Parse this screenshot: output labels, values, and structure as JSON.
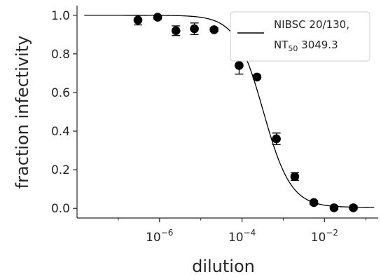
{
  "chart_data": {
    "type": "scatter",
    "xlabel": "dilution",
    "ylabel": "fraction infectivity",
    "xscale": "log",
    "xlim": [
      1e-08,
      0.2
    ],
    "ylim": [
      -0.05,
      1.05
    ],
    "grid": false,
    "legend_position": "top-right",
    "x_ticks": [
      {
        "value": 1e-06,
        "base": "10",
        "exp": "−6"
      },
      {
        "value": 0.0001,
        "base": "10",
        "exp": "−4"
      },
      {
        "value": 0.01,
        "base": "10",
        "exp": "−2"
      }
    ],
    "y_ticks": [
      "0.0",
      "0.2",
      "0.4",
      "0.6",
      "0.8",
      "1.0"
    ],
    "legend": {
      "line1": "NIBSC 20/130,",
      "line2_main": "NT",
      "line2_sub": "50",
      "line2_rest": " 3049.3"
    },
    "fit_curve": {
      "nt50": 3049.3,
      "hill": 1.3,
      "bottom": 0.005,
      "top": 1.0
    },
    "points": [
      {
        "x": 3e-07,
        "y": 0.975,
        "err": 0.025
      },
      {
        "x": 9e-07,
        "y": 0.99,
        "err": 0.01
      },
      {
        "x": 2.5e-06,
        "y": 0.92,
        "err": 0.025
      },
      {
        "x": 7e-06,
        "y": 0.93,
        "err": 0.03
      },
      {
        "x": 2.1e-05,
        "y": 0.925,
        "err": 0.01
      },
      {
        "x": 8.5e-05,
        "y": 0.74,
        "err": 0.045
      },
      {
        "x": 0.00023,
        "y": 0.68,
        "err": 0.01
      },
      {
        "x": 0.00068,
        "y": 0.36,
        "err": 0.03
      },
      {
        "x": 0.0019,
        "y": 0.165,
        "err": 0.02
      },
      {
        "x": 0.0055,
        "y": 0.03,
        "err": 0.01
      },
      {
        "x": 0.017,
        "y": 0.003,
        "err": 0.01
      },
      {
        "x": 0.05,
        "y": 0.003,
        "err": 0.01
      }
    ],
    "colors": {
      "marker": "#000000",
      "line": "#000000",
      "axis": "#262626",
      "legend_border": "#cccccc"
    }
  }
}
